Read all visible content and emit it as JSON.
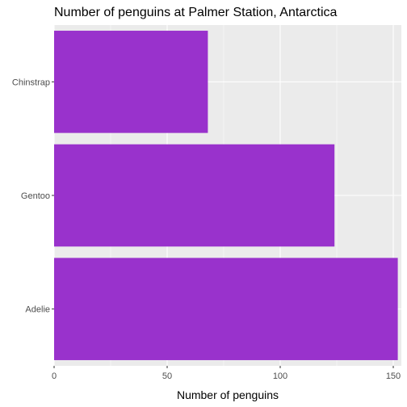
{
  "chart_data": {
    "type": "bar",
    "orientation": "horizontal",
    "title": "Number of penguins at Palmer Station, Antarctica",
    "xlabel": "Number of penguins",
    "ylabel": "",
    "categories": [
      "Adelie",
      "Gentoo",
      "Chinstrap"
    ],
    "values": [
      152,
      124,
      68
    ],
    "xlim": [
      0,
      152
    ],
    "x_ticks": [
      0,
      50,
      100,
      150
    ],
    "grid": true,
    "legend": "none",
    "colors": {
      "bar": "#9932CC",
      "panel": "#EBEBEB",
      "grid_major": "#FFFFFF",
      "tick_text": "#4D4D4D"
    }
  }
}
